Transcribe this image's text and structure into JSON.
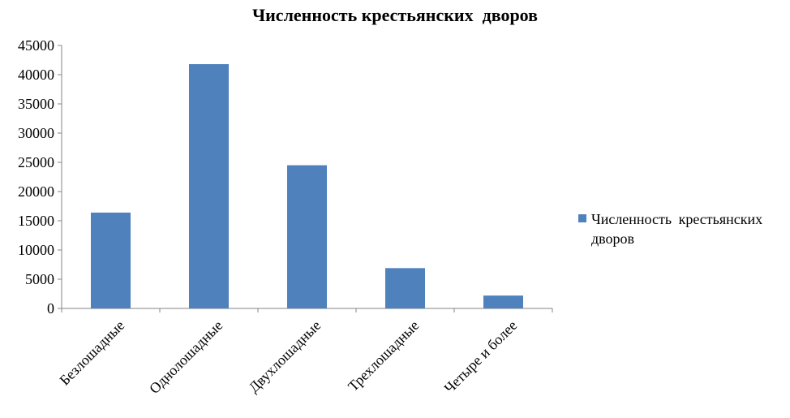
{
  "colors": {
    "bar": "#4F81BD",
    "axis": "#868686",
    "text": "#000000"
  },
  "chart_data": {
    "type": "bar",
    "title": "Численность крестьянских  дворов",
    "xlabel": "",
    "ylabel": "",
    "categories": [
      "Безлошадные",
      "Однолошадные",
      "Двухлошадные",
      "Трехлошадные",
      "Четыре и более"
    ],
    "series": [
      {
        "name": "Численность крестьянских дворов",
        "values": [
          16400,
          41800,
          24500,
          6900,
          2200
        ]
      }
    ],
    "ylim": [
      0,
      45000
    ],
    "yticks": [
      "0",
      "5000",
      "10000",
      "15000",
      "20000",
      "25000",
      "30000",
      "35000",
      "40000",
      "45000"
    ],
    "grid": false,
    "legend": "right"
  }
}
